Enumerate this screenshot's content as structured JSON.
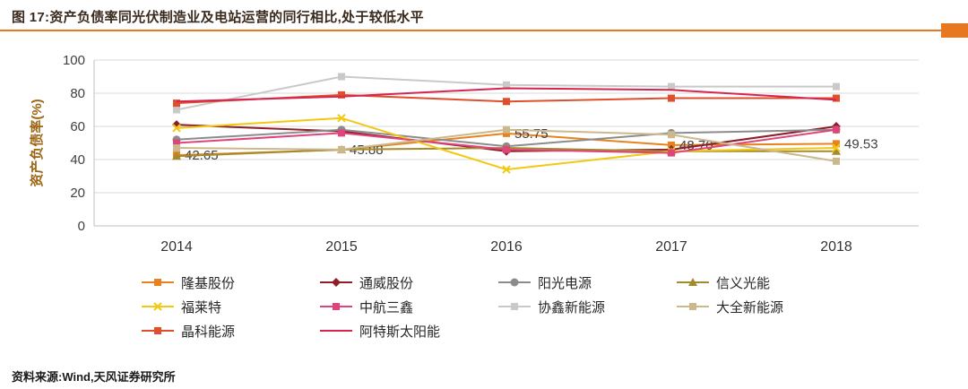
{
  "header": {
    "title": "图 17:资产负债率同光伏制造业及电站运营的同行相比,处于较低水平"
  },
  "footer": {
    "source": "资料来源:Wind,天风证券研究所"
  },
  "colors": {
    "accent": "#E87722",
    "grid": "#D9D9D9",
    "axis_line": "#BFBFBF",
    "tick_text": "#404040",
    "x_tick_text": "#333333",
    "y_axis_title_text": "#9C6615",
    "data_label_text": "#404040"
  },
  "chart_data": {
    "type": "line",
    "title": "",
    "xlabel": "",
    "ylabel": "资产负债率(%)",
    "x": [
      "2014",
      "2015",
      "2016",
      "2017",
      "2018"
    ],
    "ylim": [
      0,
      100
    ],
    "yticks": [
      0,
      20,
      40,
      60,
      80,
      100
    ],
    "grid": "horizontal",
    "legend_position": "bottom",
    "series": [
      {
        "name": "隆基股份",
        "color": "#E8821E",
        "marker": "square",
        "values": [
          42.65,
          45.88,
          55.75,
          48.7,
          49.53
        ],
        "point_labels": [
          "42.65",
          "45.88",
          "55.75",
          "48.70",
          "49.53"
        ]
      },
      {
        "name": "通威股份",
        "color": "#8C1F28",
        "marker": "diamond",
        "values": [
          61,
          57,
          45,
          46,
          60
        ]
      },
      {
        "name": "阳光电源",
        "color": "#8C8C8C",
        "marker": "circle",
        "values": [
          52,
          58,
          48,
          56,
          58
        ]
      },
      {
        "name": "信义光能",
        "color": "#A38B2D",
        "marker": "triangle",
        "values": [
          42,
          46,
          47,
          45,
          45
        ]
      },
      {
        "name": "福莱特",
        "color": "#F2C811",
        "marker": "x",
        "values": [
          59,
          65,
          34,
          45,
          47
        ]
      },
      {
        "name": "中航三鑫",
        "color": "#E0447C",
        "marker": "square",
        "values": [
          50,
          56,
          46,
          44,
          58
        ]
      },
      {
        "name": "协鑫新能源",
        "color": "#C9C9C9",
        "marker": "square",
        "values": [
          70,
          90,
          85,
          84,
          84
        ]
      },
      {
        "name": "大全新能源",
        "color": "#CBB88D",
        "marker": "square",
        "values": [
          47,
          46,
          58,
          55,
          39
        ]
      },
      {
        "name": "晶科能源",
        "color": "#E04E2B",
        "marker": "square",
        "values": [
          74,
          79,
          75,
          77,
          77
        ]
      },
      {
        "name": "阿特斯太阳能",
        "color": "#D6264F",
        "marker": "none",
        "values": [
          75,
          78,
          83,
          82,
          76
        ]
      }
    ]
  }
}
